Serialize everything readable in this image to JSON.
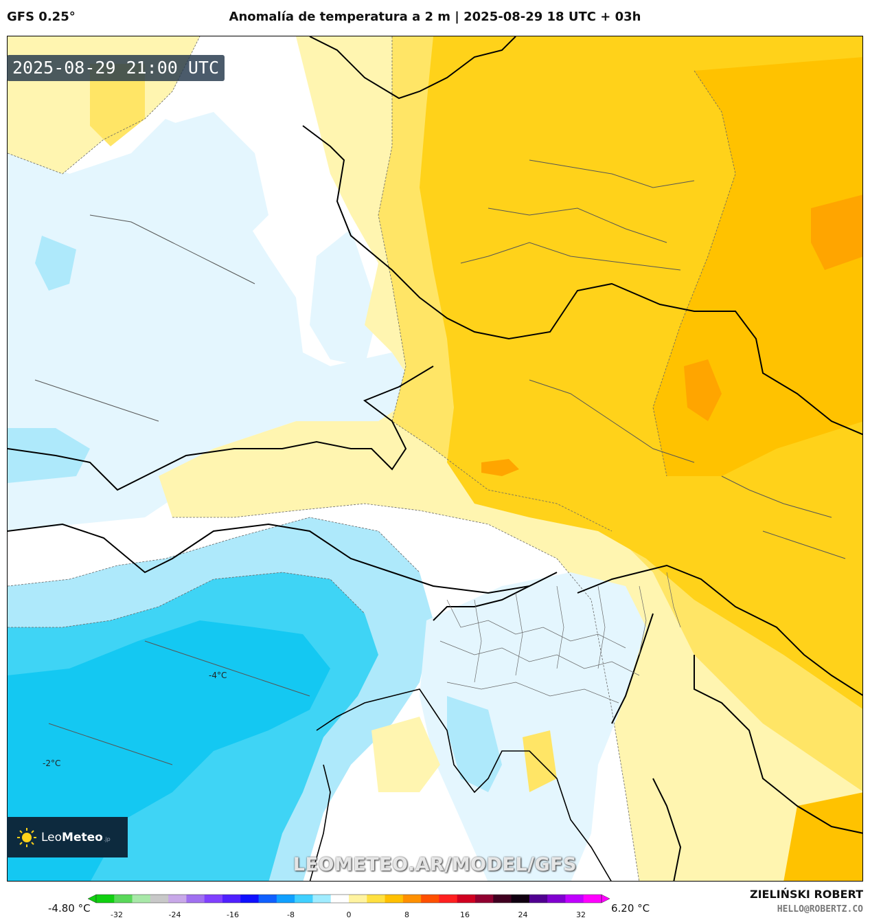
{
  "header": {
    "model": "GFS 0.25°",
    "title": "Anomalía de temperatura a 2 m | 2025-08-29 18 UTC + 03h"
  },
  "map": {
    "valid_time": "2025-08-29 21:00 UTC",
    "isoline_labels": [
      "-4°C",
      "-2°C"
    ],
    "watermark": "LEOMETEO.AR/MODEL/GFS",
    "palette": {
      "deep_blue": "#14c8f2",
      "mid_blue": "#3fd4f5",
      "light_blue": "#aee9fb",
      "pale_blue": "#e4f6fe",
      "neutral": "#ffffff",
      "pale_yellow": "#fff5b0",
      "yellow": "#ffe566",
      "gold": "#ffd21a",
      "amber": "#ffc200",
      "orange": "#ffa500"
    }
  },
  "logo": {
    "brand_light": "Leo",
    "brand_bold": "Meteo",
    "tld": ".jp",
    "icon": "sun-icon"
  },
  "colorbar": {
    "min_label": "-4.80 °C",
    "max_label": "6.20 °C",
    "ticks": [
      "-32",
      "-24",
      "-16",
      "-8",
      "0",
      "8",
      "16",
      "24",
      "32"
    ],
    "stops": [
      "#10d010",
      "#5ad85a",
      "#a8e8a8",
      "#c8c8c8",
      "#c8a8e8",
      "#a070f0",
      "#8040ff",
      "#5020ff",
      "#1010ff",
      "#1060ff",
      "#10a0ff",
      "#40d0ff",
      "#a0ecff",
      "#ffffff",
      "#fff3a0",
      "#ffe040",
      "#ffc000",
      "#ff9000",
      "#ff5000",
      "#ff2020",
      "#d00020",
      "#900030",
      "#400020",
      "#100010",
      "#500090",
      "#8000d0",
      "#c000ff",
      "#ff00ff"
    ]
  },
  "credit": {
    "name": "ZIELIŃSKI ROBERT",
    "email": "HELLO@ROBERTZ.CO"
  }
}
